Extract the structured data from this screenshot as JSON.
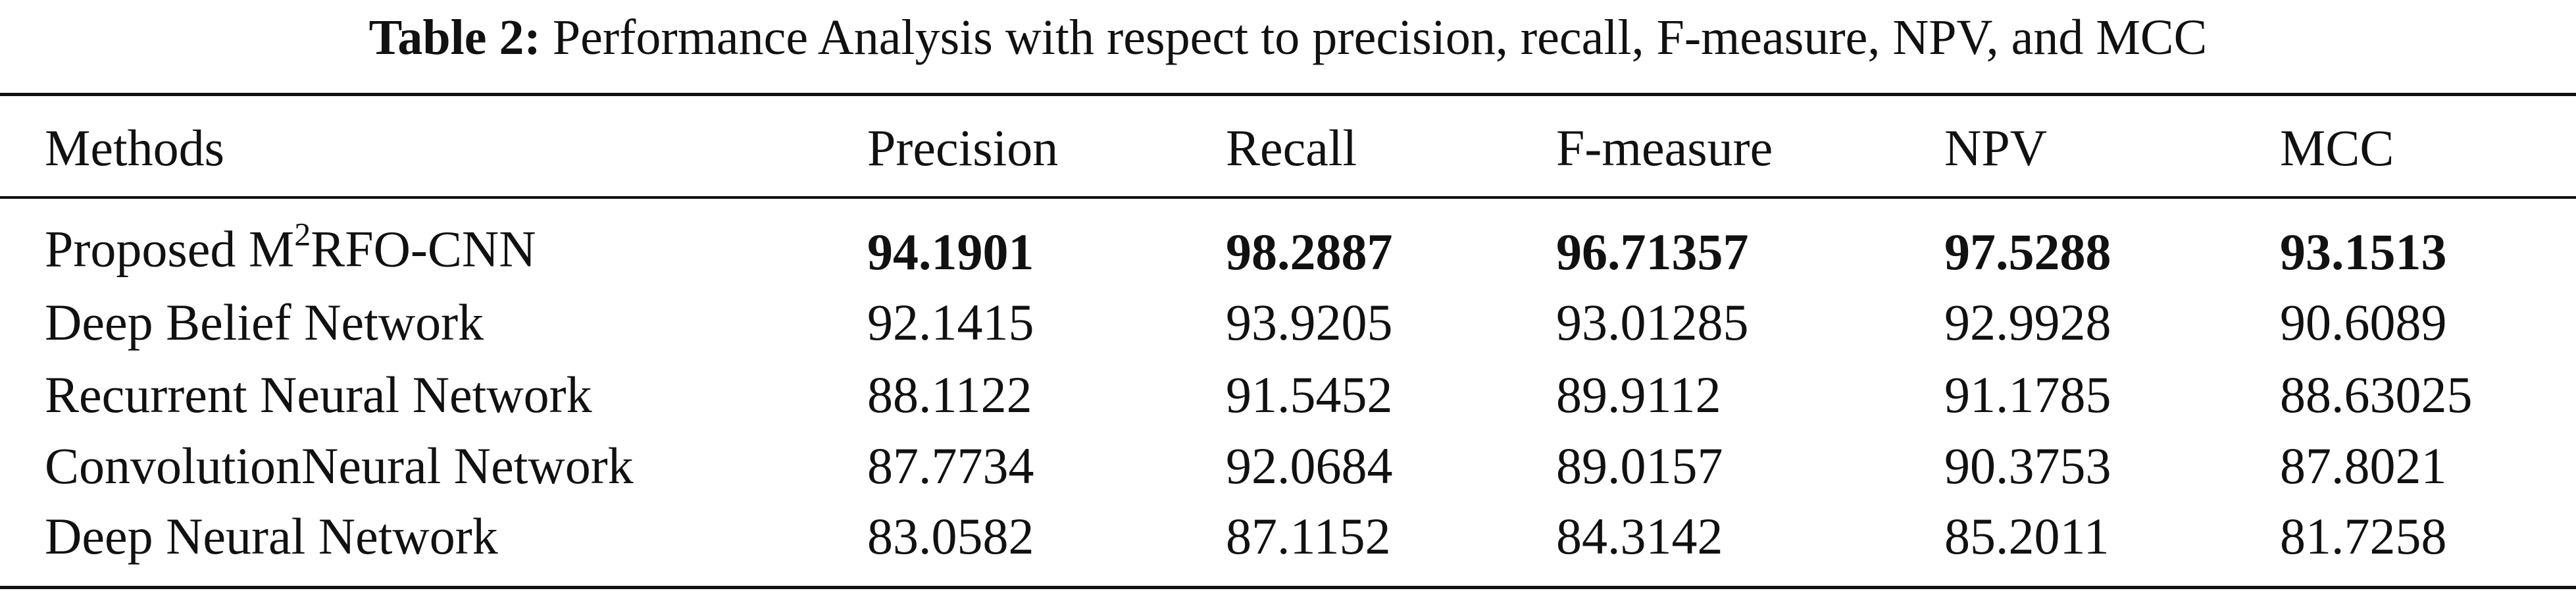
{
  "caption": {
    "label": "Table 2:",
    "text": "Performance Analysis with respect to precision, recall, F-measure, NPV, and MCC"
  },
  "table": {
    "header": [
      "Methods",
      "Precision",
      "Recall",
      "F-measure",
      "NPV",
      "MCC"
    ],
    "rows": [
      {
        "method": [
          "Proposed M",
          "2",
          "RFO-CNN"
        ],
        "values": [
          "94.1901",
          "98.2887",
          "96.71357",
          "97.5288",
          "93.1513"
        ]
      },
      {
        "method": [
          "Deep Belief Network"
        ],
        "values": [
          "92.1415",
          "93.9205",
          "93.01285",
          "92.9928",
          "90.6089"
        ]
      },
      {
        "method": [
          "Recurrent Neural Network"
        ],
        "values": [
          "88.1122",
          "91.5452",
          "89.9112",
          "91.1785",
          "88.63025"
        ]
      },
      {
        "method": [
          "ConvolutionNeural Network"
        ],
        "values": [
          "87.7734",
          "92.0684",
          "89.0157",
          "90.3753",
          "87.8021"
        ]
      },
      {
        "method": [
          "Deep Neural Network"
        ],
        "values": [
          "83.0582",
          "87.1152",
          "84.3142",
          "85.2011",
          "81.7258"
        ]
      }
    ]
  }
}
